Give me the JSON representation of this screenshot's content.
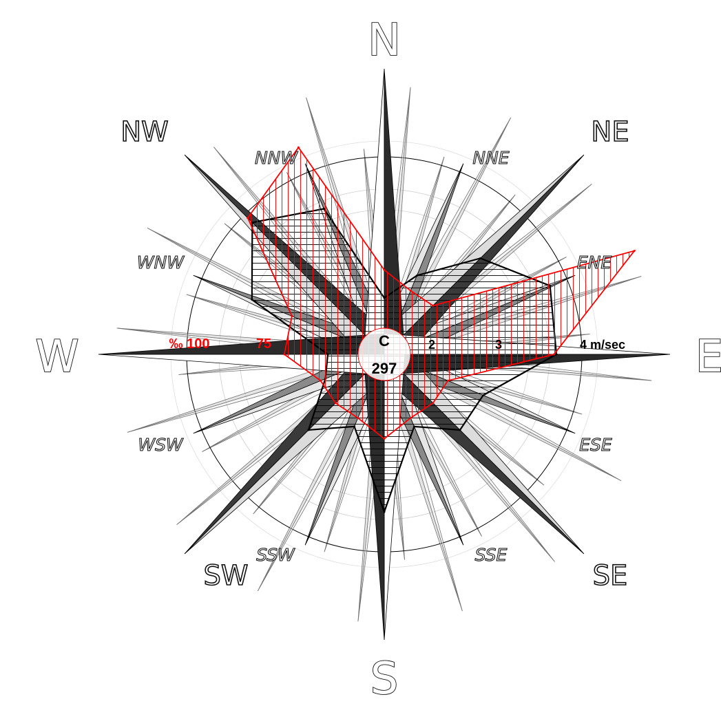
{
  "chart_data": {
    "type": "radar",
    "directions": [
      "N",
      "NNE",
      "NE",
      "ENE",
      "E",
      "ESE",
      "SE",
      "SSE",
      "S",
      "SSW",
      "SW",
      "WSW",
      "W",
      "WNW",
      "NW",
      "NNW"
    ],
    "major_labels": [
      "N",
      "NE",
      "E",
      "SE",
      "S",
      "SW",
      "W",
      "NW"
    ],
    "minor_labels": [
      "NNE",
      "ENE",
      "ESE",
      "SSE",
      "SSW",
      "WSW",
      "WNW",
      "NNW"
    ],
    "speed_ticks": [
      "2",
      "3",
      "4 m/sec"
    ],
    "frequency_ticks": [
      "‰ 100",
      "75"
    ],
    "calm_label": "C",
    "calm_value": "297",
    "colors": {
      "speed": "#000000",
      "frequency": "#ff0000"
    },
    "series": [
      {
        "values": [
          2.0,
          2.4,
          3.1,
          3.7,
          3.6,
          2.7,
          2.7,
          2.3,
          3.4,
          2.3,
          2.7,
          2.1,
          2.0,
          3.2,
          3.8,
          3.4
        ]
      },
      {
        "values": [
          30,
          20,
          20,
          150,
          85,
          20,
          20,
          20,
          30,
          20,
          20,
          20,
          40,
          40,
          100,
          120
        ]
      }
    ]
  }
}
